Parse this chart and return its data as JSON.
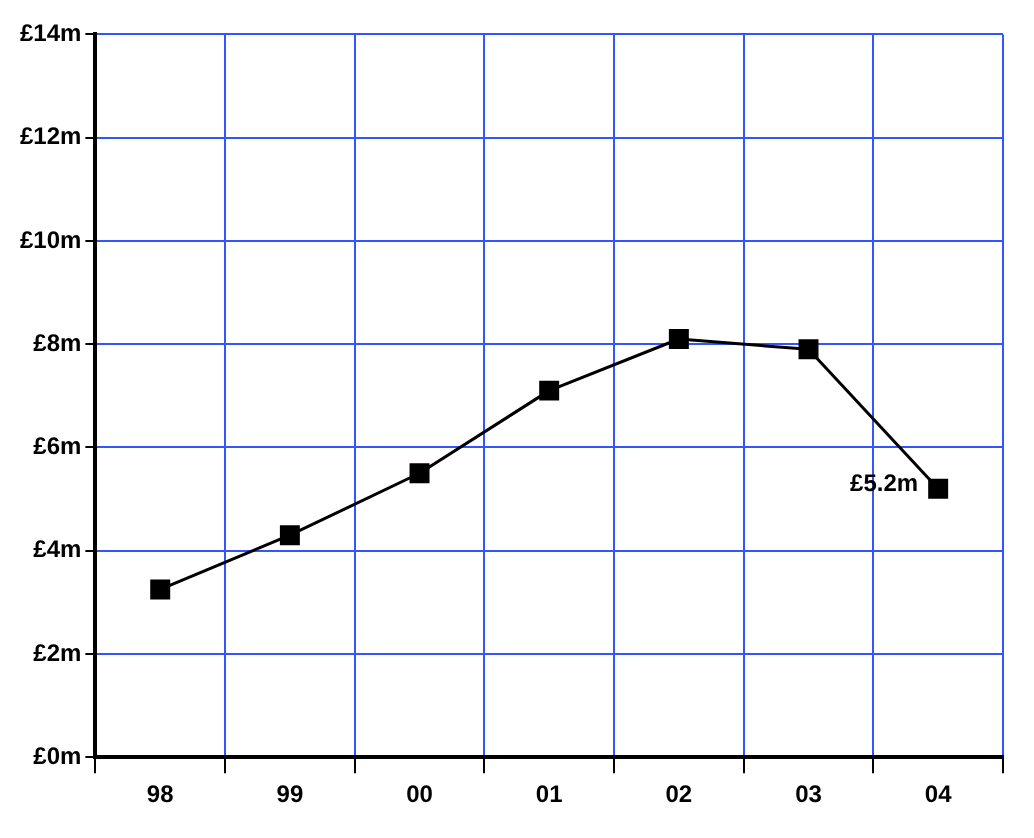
{
  "chart_data": {
    "type": "line",
    "categories": [
      "98",
      "99",
      "00",
      "01",
      "02",
      "03",
      "04"
    ],
    "series": [
      {
        "color": "#000000",
        "values": [
          3.25,
          4.3,
          5.5,
          7.1,
          8.1,
          7.9,
          5.2
        ]
      }
    ],
    "ylim": [
      0,
      14
    ],
    "yticks": [
      {
        "value": 0,
        "label": "£0m"
      },
      {
        "value": 2,
        "label": "£2m"
      },
      {
        "value": 4,
        "label": "£4m"
      },
      {
        "value": 6,
        "label": "£6m"
      },
      {
        "value": 8,
        "label": "£8m"
      },
      {
        "value": 10,
        "label": "£10m"
      },
      {
        "value": 12,
        "label": "£12m"
      },
      {
        "value": 14,
        "label": "£14m"
      }
    ],
    "grid": true,
    "legend": false,
    "marker": "square",
    "line_style": "solid",
    "annotations": [
      {
        "text": "£5.2m",
        "x": "04",
        "y": 5.2
      }
    ]
  }
}
